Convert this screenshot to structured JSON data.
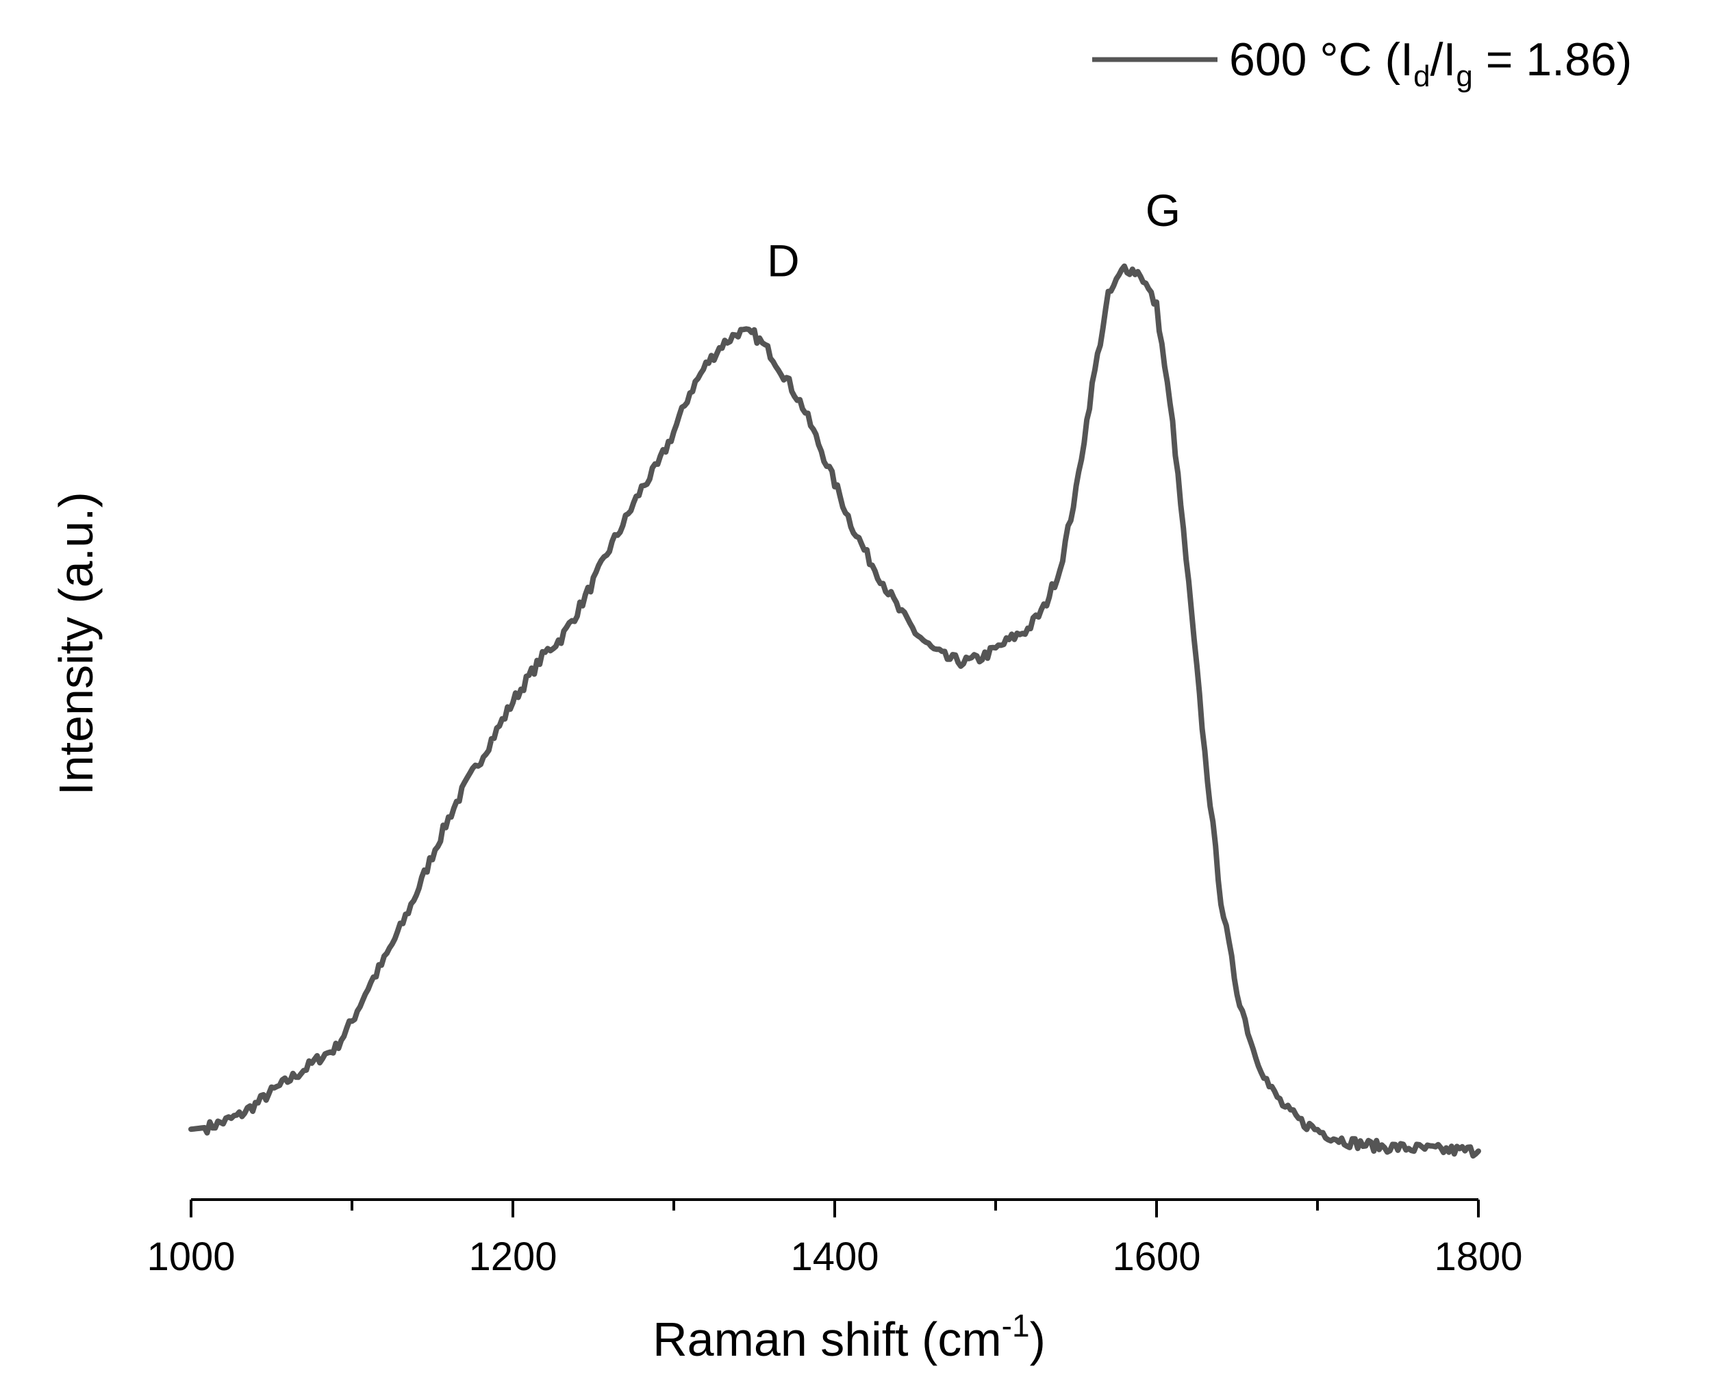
{
  "chart_data": {
    "type": "line",
    "title": "",
    "xlabel": "Raman shift (cm",
    "xlabel_sup": "-1",
    "xlabel_tail": ")",
    "ylabel": "Intensity (a.u.)",
    "xlim": [
      1000,
      1800
    ],
    "ylim": [
      0,
      1.2
    ],
    "x_ticks": [
      "1000",
      "1200",
      "1400",
      "1600",
      "1800"
    ],
    "x_tick_values": [
      1000,
      1200,
      1400,
      1600,
      1800
    ],
    "x_minor_tick_values": [
      1100,
      1300,
      1500,
      1700
    ],
    "y_axis_visible": false,
    "grid": false,
    "legend_position": "top-right",
    "colors": {
      "line": "#555555"
    },
    "legend": {
      "temp": "600 °C (I",
      "sub1": "d",
      "mid": "/I",
      "sub2": "g",
      "tail": " = 1.86)"
    },
    "annotations": [
      {
        "text": "D",
        "x": 1368,
        "y": 1.01
      },
      {
        "text": "G",
        "x": 1604,
        "y": 1.065
      }
    ],
    "series": [
      {
        "name": "600 °C (Id/Ig = 1.86)",
        "x": [
          1000,
          1010,
          1020,
          1030,
          1040,
          1050,
          1060,
          1070,
          1080,
          1090,
          1100,
          1110,
          1120,
          1130,
          1140,
          1150,
          1160,
          1170,
          1180,
          1190,
          1200,
          1210,
          1220,
          1230,
          1240,
          1250,
          1260,
          1270,
          1280,
          1290,
          1300,
          1310,
          1320,
          1330,
          1340,
          1350,
          1360,
          1370,
          1380,
          1390,
          1400,
          1410,
          1420,
          1430,
          1440,
          1450,
          1460,
          1470,
          1480,
          1490,
          1500,
          1510,
          1520,
          1530,
          1540,
          1550,
          1560,
          1570,
          1580,
          1590,
          1600,
          1610,
          1620,
          1630,
          1640,
          1650,
          1660,
          1670,
          1680,
          1690,
          1700,
          1710,
          1720,
          1730,
          1740,
          1750,
          1760,
          1770,
          1780,
          1790,
          1800
        ],
        "y": [
          0.077,
          0.079,
          0.085,
          0.092,
          0.104,
          0.118,
          0.13,
          0.142,
          0.155,
          0.166,
          0.195,
          0.232,
          0.262,
          0.297,
          0.335,
          0.377,
          0.417,
          0.452,
          0.482,
          0.513,
          0.545,
          0.572,
          0.598,
          0.614,
          0.643,
          0.676,
          0.712,
          0.744,
          0.778,
          0.803,
          0.84,
          0.883,
          0.913,
          0.935,
          0.949,
          0.946,
          0.926,
          0.898,
          0.868,
          0.827,
          0.784,
          0.74,
          0.705,
          0.675,
          0.645,
          0.621,
          0.603,
          0.592,
          0.588,
          0.592,
          0.602,
          0.614,
          0.624,
          0.647,
          0.69,
          0.775,
          0.89,
          0.988,
          1.02,
          1.013,
          0.977,
          0.848,
          0.672,
          0.488,
          0.328,
          0.228,
          0.165,
          0.124,
          0.1,
          0.085,
          0.076,
          0.068,
          0.063,
          0.06,
          0.058,
          0.057,
          0.056,
          0.055,
          0.054,
          0.054,
          0.053
        ]
      }
    ]
  }
}
